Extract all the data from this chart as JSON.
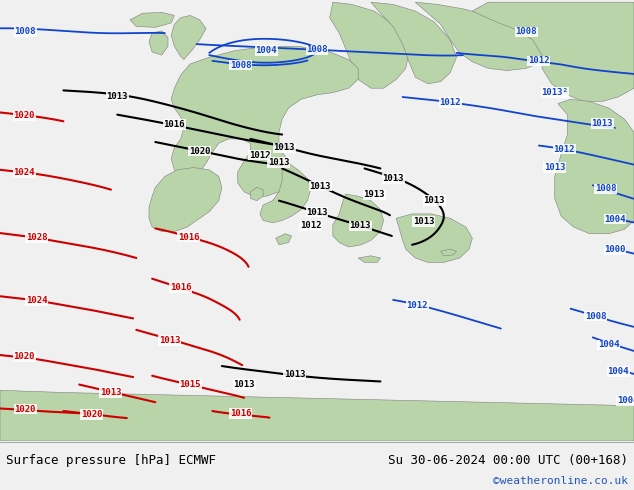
{
  "title_left": "Surface pressure [hPa] ECMWF",
  "title_right": "Su 30-06-2024 00:00 UTC (00+168)",
  "credit": "©weatheronline.co.uk",
  "figsize": [
    6.34,
    4.9
  ],
  "dpi": 100,
  "map_bg": "#d0dfe8",
  "land_color": "#b8d4a8",
  "land_edge": "#808080",
  "footer_bg": "#f0f0f0",
  "footer_line": "#aaaaaa",
  "blue": "#1144cc",
  "black": "#000000",
  "red": "#cc0000",
  "credit_color": "#2255bb",
  "font_size_label": 6.5,
  "font_size_footer": 9,
  "font_size_credit": 8
}
